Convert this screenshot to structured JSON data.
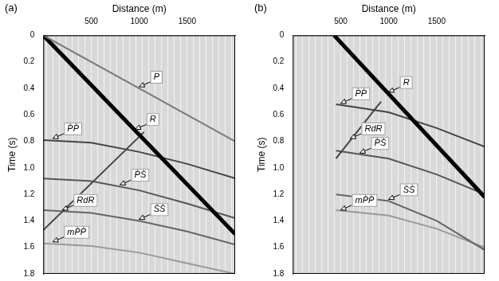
{
  "chart_data": [
    {
      "type": "line",
      "title": "(a)",
      "x_label": "Distance (m)",
      "y_label": "Time (s)",
      "xlim": [
        0,
        2000
      ],
      "xticks": [
        500,
        1000,
        1500
      ],
      "ylim": [
        0,
        1.8
      ],
      "yticks": [
        0,
        0.2,
        0.4,
        0.6,
        0.8,
        {
          "value": 1,
          "label": "1.0"
        },
        1.2,
        1.4,
        1.6,
        1.8
      ],
      "grid": false,
      "series": [
        {
          "color": "#7a7a7a",
          "line_style": "solid",
          "x": [
            0,
            2000
          ],
          "values": [
            0,
            0.8
          ]
        },
        {
          "color": "#000000",
          "line_style": "bold",
          "x": [
            0,
            2000
          ],
          "values": [
            0,
            1.5
          ]
        },
        {
          "color": "#444444",
          "line_style": "solid",
          "x": [
            0,
            500,
            1000,
            1500,
            2000
          ],
          "values": [
            0.79,
            0.81,
            0.88,
            0.97,
            1.08
          ]
        },
        {
          "color": "#444444",
          "line_style": "solid",
          "x": [
            0,
            1050
          ],
          "values": [
            1.47,
            0.73
          ]
        },
        {
          "color": "#555555",
          "line_style": "solid",
          "x": [
            0,
            500,
            1000,
            1500,
            2000
          ],
          "values": [
            1.08,
            1.1,
            1.17,
            1.27,
            1.38
          ]
        },
        {
          "color": "#666666",
          "line_style": "solid",
          "x": [
            0,
            500,
            1000,
            1500,
            2000
          ],
          "values": [
            1.32,
            1.34,
            1.4,
            1.48,
            1.58
          ]
        },
        {
          "color": "#999999",
          "line_style": "solid",
          "x": [
            0,
            500,
            1000,
            1500,
            2000
          ],
          "values": [
            1.57,
            1.59,
            1.64,
            1.72,
            1.8
          ]
        }
      ],
      "annotations": [
        {
          "text": "P",
          "x": 1000,
          "y": 0.4
        },
        {
          "text": "R",
          "x": 960,
          "y": 0.72
        },
        {
          "text": "P̀P̀",
          "x": 100,
          "y": 0.79
        },
        {
          "text": "RdR",
          "x": 200,
          "y": 1.33
        },
        {
          "text": "P̀S̀",
          "x": 800,
          "y": 1.14
        },
        {
          "text": "S̀S̀",
          "x": 1000,
          "y": 1.4
        },
        {
          "text": "mP̀P̀",
          "x": 100,
          "y": 1.57
        }
      ]
    },
    {
      "type": "line",
      "title": "(b)",
      "x_label": "Distance (m)",
      "y_label": "Time (s)",
      "xlim": [
        0,
        2000
      ],
      "xticks": [
        500,
        1000,
        1500
      ],
      "ylim": [
        0,
        1.8
      ],
      "yticks": [
        0,
        0.2,
        0.4,
        0.6,
        0.8,
        {
          "value": 1,
          "label": "1.0"
        },
        1.2,
        1.4,
        1.6,
        1.8
      ],
      "grid": false,
      "series": [
        {
          "color": "#000000",
          "line_style": "bold",
          "x": [
            430,
            2000
          ],
          "values": [
            0,
            1.22
          ]
        },
        {
          "color": "#444444",
          "line_style": "solid",
          "x": [
            450,
            1000,
            1500,
            2000
          ],
          "values": [
            0.52,
            0.58,
            0.7,
            0.84
          ]
        },
        {
          "color": "#444444",
          "line_style": "solid",
          "x": [
            450,
            920
          ],
          "values": [
            0.93,
            0.5
          ]
        },
        {
          "color": "#555555",
          "line_style": "solid",
          "x": [
            450,
            1000,
            1500,
            2000
          ],
          "values": [
            0.87,
            0.93,
            1.05,
            1.2
          ]
        },
        {
          "color": "#666666",
          "line_style": "solid",
          "x": [
            450,
            1000,
            1500,
            2000
          ],
          "values": [
            1.2,
            1.25,
            1.4,
            1.62
          ]
        },
        {
          "color": "#999999",
          "line_style": "solid",
          "x": [
            450,
            1000,
            1500,
            2000
          ],
          "values": [
            1.32,
            1.36,
            1.46,
            1.6
          ]
        }
      ],
      "annotations": [
        {
          "text": "R",
          "x": 1000,
          "y": 0.44
        },
        {
          "text": "P̀P̀",
          "x": 500,
          "y": 0.525
        },
        {
          "text": "RdR",
          "x": 600,
          "y": 0.79
        },
        {
          "text": "P̀S̀",
          "x": 700,
          "y": 0.9
        },
        {
          "text": "S̀S̀",
          "x": 1000,
          "y": 1.25
        },
        {
          "text": "mP̀P̀",
          "x": 500,
          "y": 1.33
        }
      ]
    }
  ]
}
